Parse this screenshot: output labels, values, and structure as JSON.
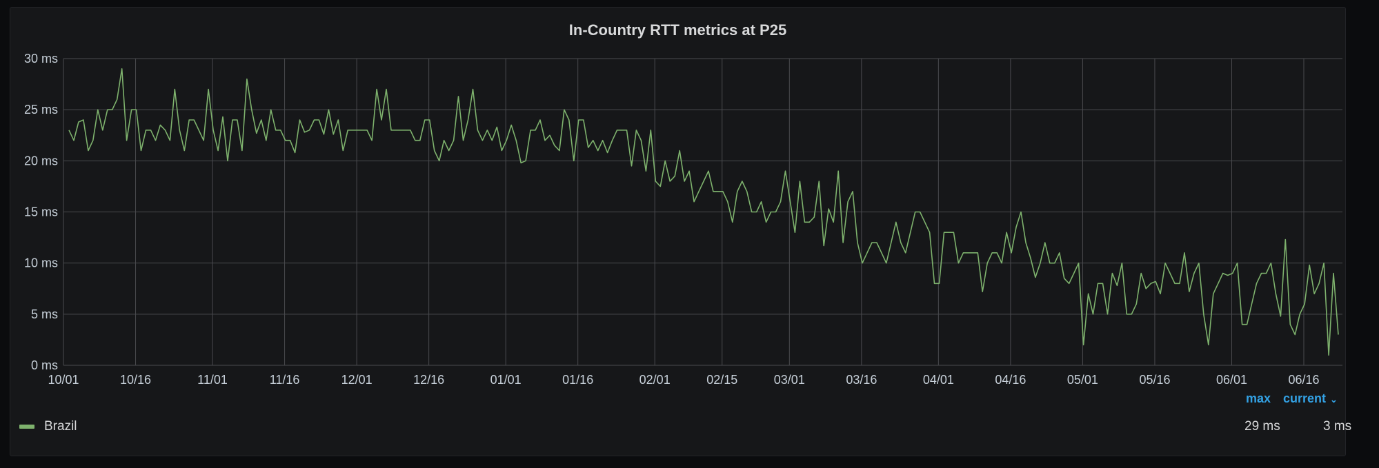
{
  "chart_data": {
    "type": "line",
    "title": "In-Country RTT metrics at P25",
    "xlabel": "",
    "ylabel": "",
    "unit": "ms",
    "ylim": [
      0,
      30
    ],
    "y_ticks": [
      "0 ms",
      "5 ms",
      "10 ms",
      "15 ms",
      "20 ms",
      "25 ms",
      "30 ms"
    ],
    "x_ticks": [
      "10/01",
      "10/16",
      "11/01",
      "11/16",
      "12/01",
      "12/16",
      "01/01",
      "01/16",
      "02/01",
      "02/15",
      "03/01",
      "03/16",
      "04/01",
      "04/16",
      "05/01",
      "05/16",
      "06/01",
      "06/16"
    ],
    "grid": true,
    "legend_placement": "bottom",
    "series": [
      {
        "name": "Brazil",
        "color": "#7eb26d",
        "values": [
          23,
          22,
          23.8,
          24,
          21,
          22,
          25,
          23,
          25,
          25,
          26,
          29,
          22,
          25,
          25,
          21,
          23,
          23,
          22,
          23.5,
          23,
          22,
          27,
          23,
          21,
          24,
          24,
          23,
          22,
          27,
          23,
          21,
          24.3,
          20,
          24,
          24,
          21,
          28,
          25,
          22.7,
          24,
          22,
          25,
          23,
          23,
          22,
          22,
          20.8,
          24,
          22.8,
          23,
          24,
          24,
          22.6,
          25,
          22.6,
          24,
          21,
          23,
          23,
          23,
          23,
          23,
          22,
          27,
          24,
          27,
          23,
          23,
          23,
          23,
          23,
          22,
          22,
          24,
          24,
          21,
          20,
          22,
          21,
          22,
          26.3,
          22,
          24,
          27,
          23,
          22,
          23,
          22,
          23.3,
          21,
          22,
          23.5,
          22,
          19.8,
          20,
          23,
          23,
          24,
          22,
          22.5,
          21.5,
          21,
          25,
          24,
          20,
          24,
          24,
          21.3,
          22,
          21,
          22,
          20.8,
          22,
          23,
          23,
          23,
          19.5,
          23,
          22,
          19,
          23,
          18,
          17.5,
          20,
          18,
          18.5,
          21,
          18,
          19,
          16,
          17,
          18,
          19,
          17,
          17,
          17,
          16,
          14,
          17,
          18,
          17,
          15,
          15,
          16,
          14,
          15,
          15,
          16,
          19,
          16,
          13,
          18,
          14,
          14,
          14.5,
          18,
          11.7,
          15.3,
          14,
          19,
          12,
          16,
          17,
          12,
          10,
          11,
          12,
          12,
          11,
          10,
          12,
          14,
          12,
          11,
          13,
          15,
          15,
          14,
          13,
          8,
          8,
          13,
          13,
          13,
          10,
          11,
          11,
          11,
          11,
          7.2,
          10,
          11,
          11,
          10,
          13,
          11,
          13.5,
          15,
          12,
          10.5,
          8.6,
          10,
          12,
          10,
          10,
          11,
          8.5,
          8,
          9,
          10,
          2,
          7,
          5,
          8,
          8,
          5,
          9,
          7.8,
          10,
          5,
          5,
          6,
          9,
          7.5,
          8,
          8.2,
          7,
          10,
          9,
          8,
          8,
          11,
          7.2,
          9,
          10,
          5,
          2,
          7,
          8,
          9,
          8.8,
          9,
          10,
          4,
          4,
          6,
          8,
          9,
          9,
          10,
          7,
          4.8,
          12.3,
          4,
          3,
          5,
          6,
          9.8,
          7,
          8,
          10,
          1,
          9,
          3
        ]
      }
    ],
    "legend_columns": [
      "max",
      "current"
    ],
    "legend_values": [
      "29 ms",
      "3 ms"
    ]
  }
}
